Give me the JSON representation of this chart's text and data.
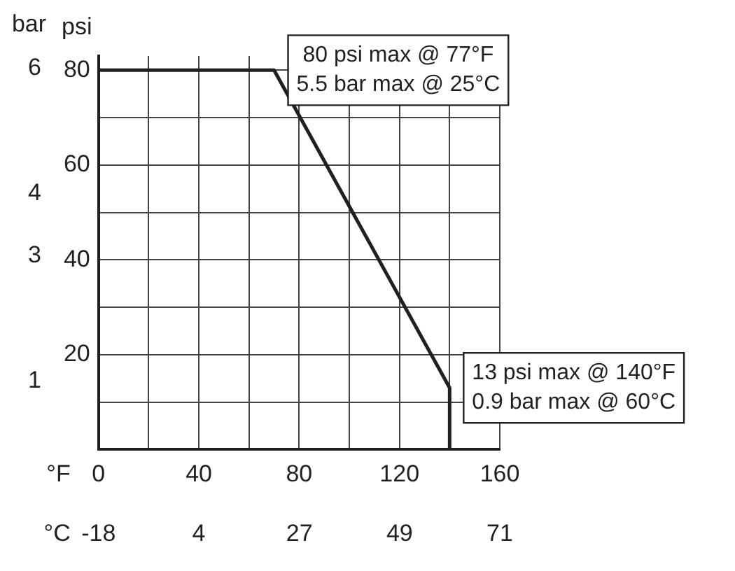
{
  "chart_data": {
    "type": "line",
    "xlabel": "°F",
    "ylabel": "psi",
    "y2label": "bar",
    "x2label": "°C",
    "x": [
      0,
      70,
      140,
      140
    ],
    "series": [
      {
        "color": "#231f20",
        "values": [
          80,
          80,
          13,
          0
        ]
      }
    ],
    "xlim": [
      0,
      160
    ],
    "xticks": [
      0,
      40,
      80,
      120,
      160
    ],
    "ylim": [
      0,
      83
    ],
    "yticks": [
      20,
      40,
      60,
      80
    ],
    "y2lim": [
      -0.1,
      6.2
    ],
    "y2ticks": [
      1,
      3,
      4,
      6
    ],
    "x2lim": [
      -17.8,
      71.1
    ],
    "x2ticks": [
      {
        "value": -17.8,
        "label": "-18"
      },
      {
        "value": 4.4,
        "label": "4"
      },
      {
        "value": 26.7,
        "label": "27"
      },
      {
        "value": 48.9,
        "label": "49"
      },
      {
        "value": 71.1,
        "label": "71"
      }
    ],
    "grid": true,
    "legend": false,
    "marker": "none",
    "line_style": "solid",
    "annotations": [
      {
        "text": "80 psi max @ 77°F\n5.5 bar max @ 25°C",
        "x": 70,
        "y": 80
      },
      {
        "text": "13 psi max @ 140°F\n0.9 bar max @ 60°C",
        "x": 140,
        "y": 13
      }
    ]
  }
}
